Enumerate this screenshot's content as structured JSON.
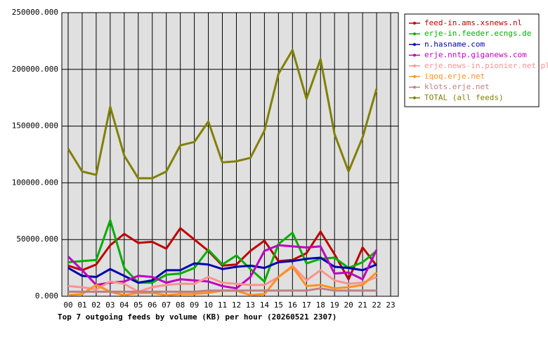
{
  "chart_data": {
    "type": "line",
    "title": "Top 7 outgoing feeds by volume (KB) per hour (20260521 2307)",
    "categories": [
      "00",
      "01",
      "02",
      "03",
      "04",
      "05",
      "06",
      "07",
      "08",
      "09",
      "10",
      "11",
      "12",
      "13",
      "14",
      "15",
      "16",
      "17",
      "18",
      "19",
      "20",
      "21",
      "22",
      "23"
    ],
    "ylim": [
      0,
      250000
    ],
    "yticks": [
      {
        "value": 0,
        "label": "0.000"
      },
      {
        "value": 50000,
        "label": "50000.000"
      },
      {
        "value": 100000,
        "label": "100000.000"
      },
      {
        "value": 150000,
        "label": "150000.000"
      },
      {
        "value": 200000,
        "label": "200000.000"
      },
      {
        "value": 250000,
        "label": "250000.000"
      }
    ],
    "grid": true,
    "legend": "right",
    "series": [
      {
        "name": "feed-in.ams.xsnews.nl",
        "color": "#c00000",
        "values": [
          27000,
          23000,
          28000,
          45000,
          55000,
          47000,
          48000,
          42000,
          60000,
          50000,
          40000,
          27000,
          28000,
          40000,
          49000,
          31000,
          32000,
          38000,
          57000,
          37000,
          15000,
          43000,
          27000,
          null
        ]
      },
      {
        "name": "erje-in.feeder.ecngs.de",
        "color": "#00b000",
        "values": [
          30000,
          31000,
          32000,
          67000,
          25000,
          12000,
          12000,
          19000,
          20000,
          25000,
          41000,
          28000,
          36000,
          24000,
          13000,
          46000,
          56000,
          29000,
          33000,
          34000,
          25000,
          30000,
          40000,
          null
        ]
      },
      {
        "name": "n.hasname.com",
        "color": "#0000b0",
        "values": [
          25000,
          18000,
          17000,
          24000,
          18000,
          12000,
          14000,
          23000,
          23000,
          29000,
          28000,
          24000,
          26000,
          27000,
          25000,
          30000,
          31000,
          33000,
          34000,
          26000,
          25000,
          23000,
          28000,
          null
        ]
      },
      {
        "name": "erje.nntp.giganews.com",
        "color": "#c000c0",
        "values": [
          35000,
          23000,
          10000,
          12000,
          13000,
          18000,
          17000,
          12000,
          15000,
          14000,
          13000,
          9000,
          7000,
          17000,
          40000,
          45000,
          44000,
          43000,
          44000,
          20000,
          21000,
          15000,
          41000,
          null
        ]
      },
      {
        "name": "erje.news-in.pionier.net.pl",
        "color": "#ff9090",
        "values": [
          9000,
          8000,
          6000,
          13000,
          11000,
          4000,
          8000,
          10000,
          11000,
          11000,
          17000,
          12000,
          11000,
          10000,
          10000,
          17000,
          27000,
          14000,
          23000,
          14000,
          11000,
          12000,
          17000,
          null
        ]
      },
      {
        "name": "iqoq.erje.net",
        "color": "#ff9020",
        "values": [
          1000,
          2000,
          10000,
          4000,
          1000,
          3000,
          3000,
          1000,
          2000,
          2000,
          3000,
          5000,
          5000,
          1000,
          2000,
          17000,
          26000,
          9000,
          10000,
          7000,
          8000,
          10000,
          21000,
          null
        ]
      },
      {
        "name": "klots.erje.net",
        "color": "#c08080",
        "values": [
          4000,
          4000,
          4000,
          4000,
          4000,
          4000,
          4000,
          4000,
          4000,
          4000,
          5000,
          5000,
          5000,
          5000,
          5000,
          5000,
          5000,
          5000,
          7000,
          5000,
          5000,
          5000,
          5000,
          null
        ]
      },
      {
        "name": "TOTAL (all feeds)",
        "color": "#808000",
        "values": [
          130000,
          110000,
          107000,
          167000,
          124000,
          104000,
          104000,
          110000,
          133000,
          136000,
          154000,
          118000,
          119000,
          122000,
          146000,
          196000,
          217000,
          174000,
          209000,
          143000,
          110000,
          140000,
          183000,
          null
        ]
      }
    ]
  }
}
